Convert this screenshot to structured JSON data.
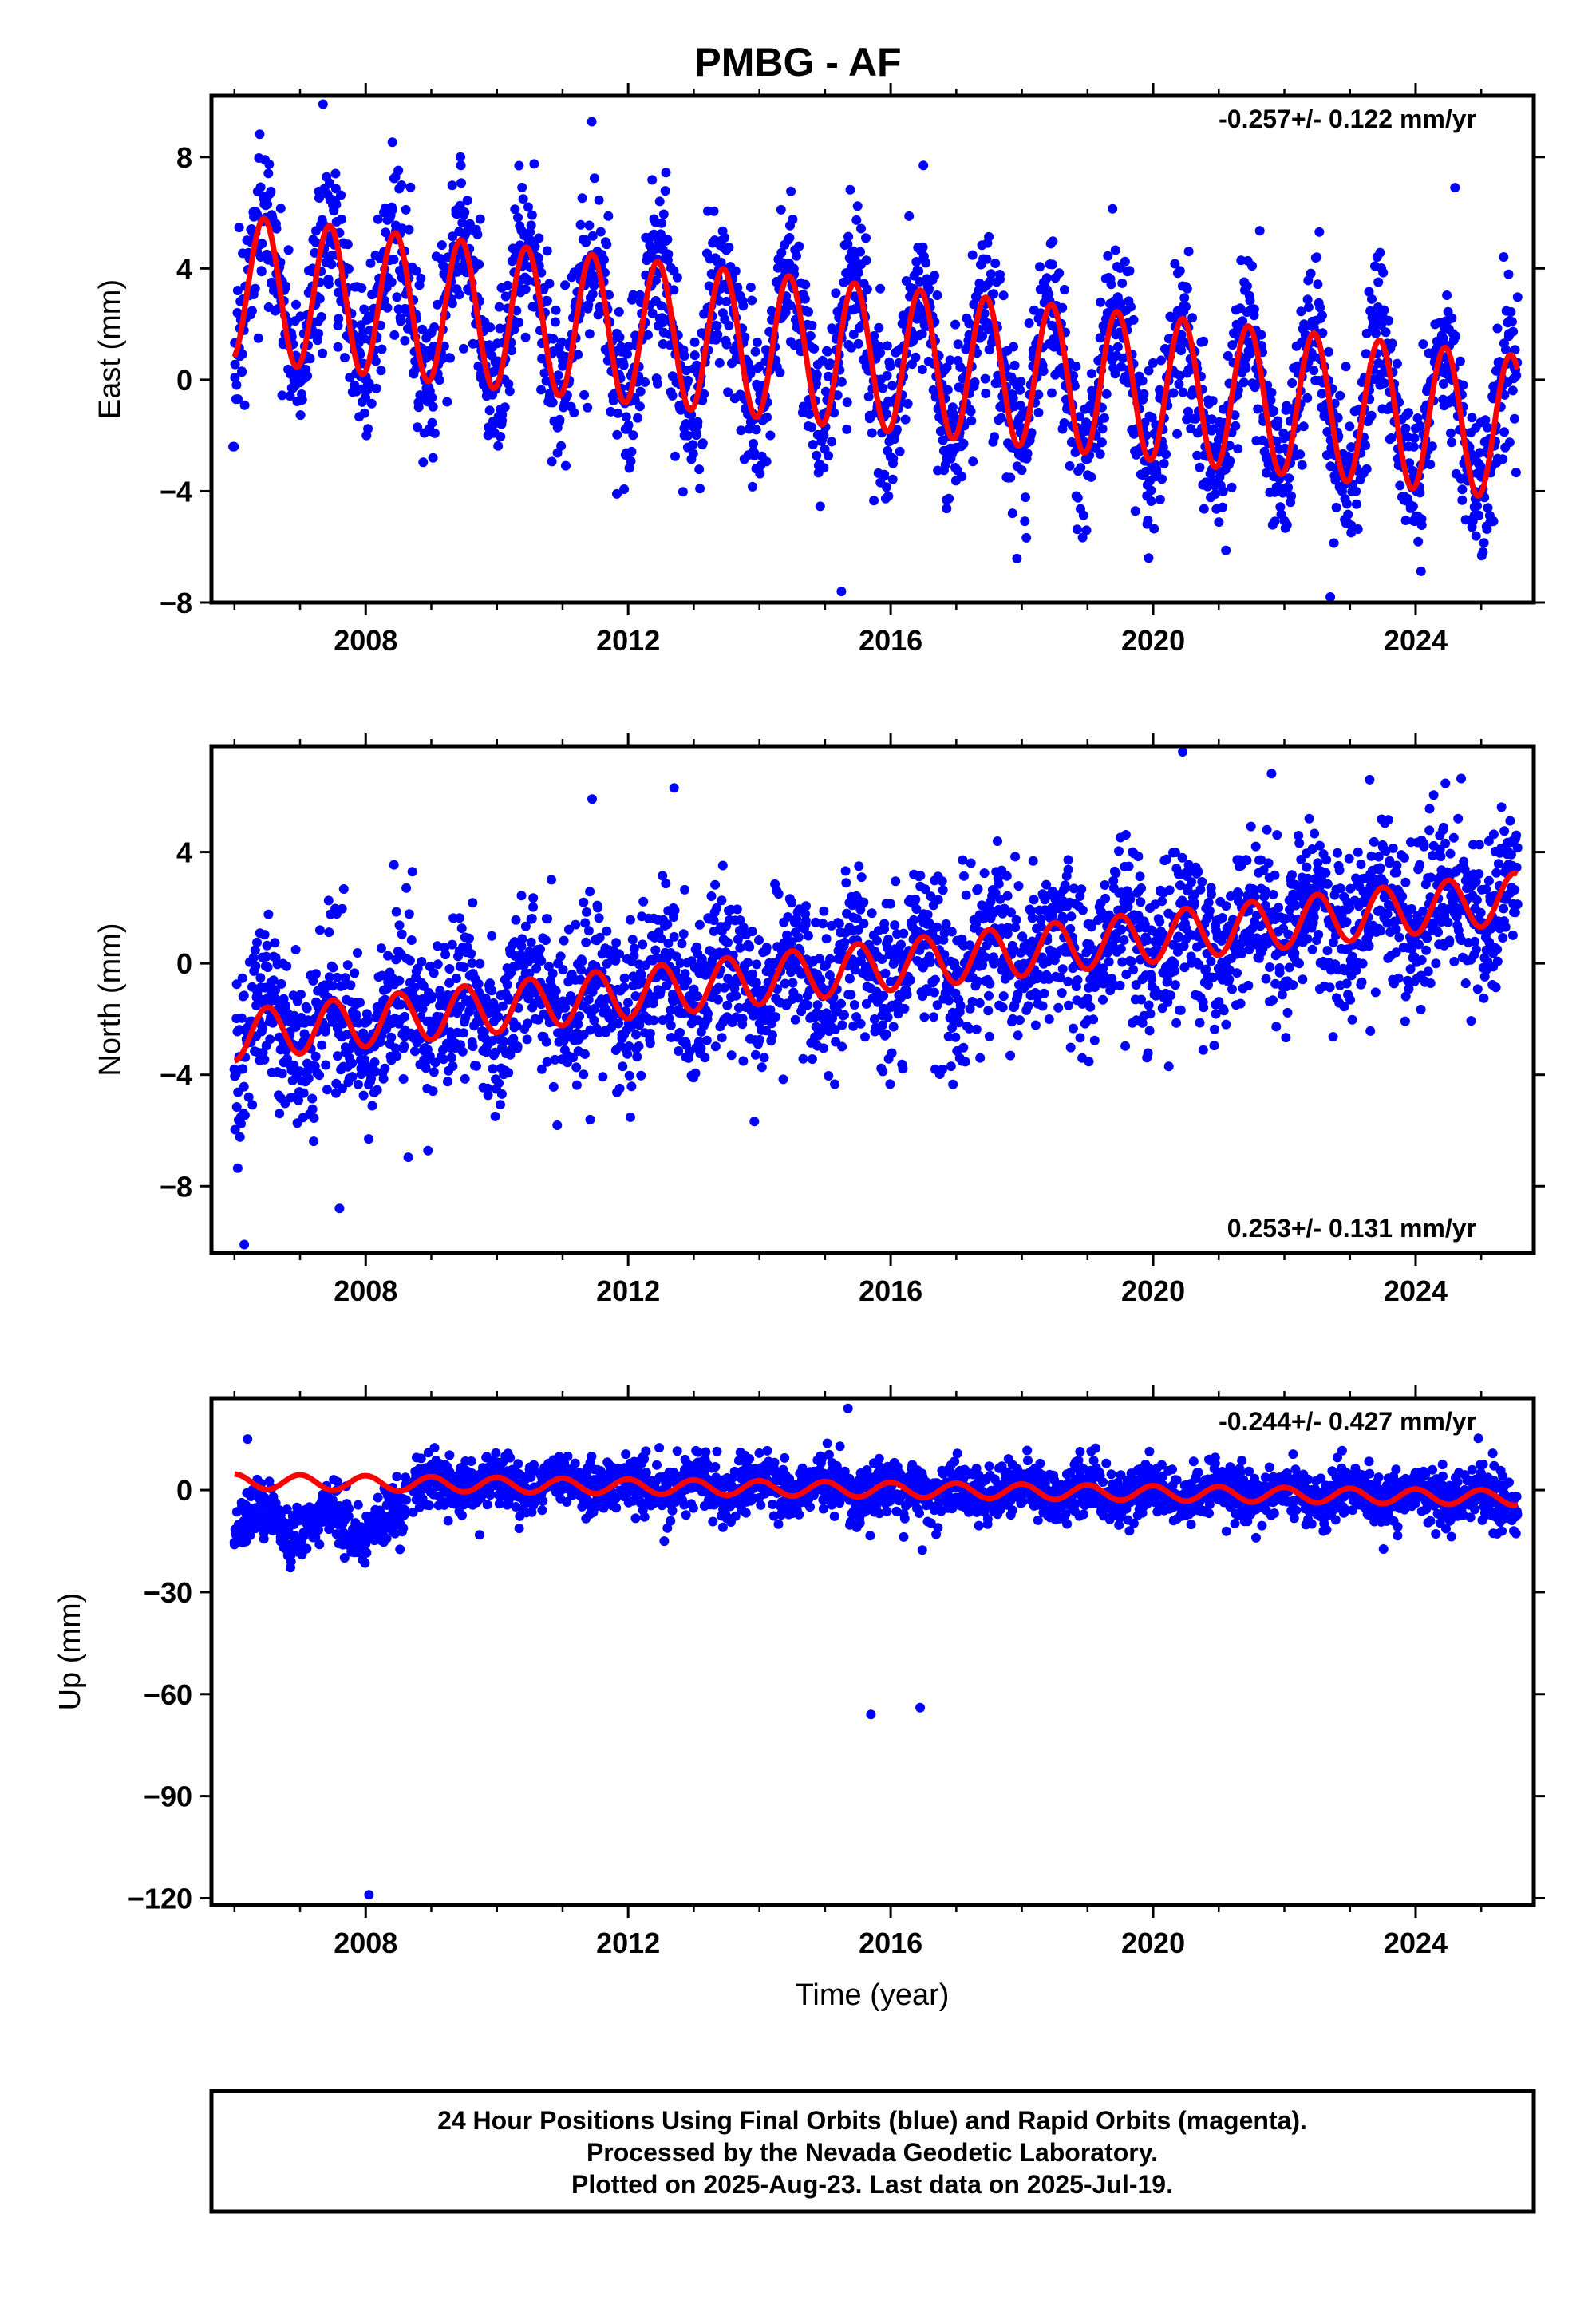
{
  "title": "PMBG - AF",
  "xlabel": "Time (year)",
  "x_ticks": [
    "2008",
    "2012",
    "2016",
    "2020",
    "2024"
  ],
  "footer": {
    "line1": "24 Hour Positions Using Final Orbits (blue) and Rapid Orbits (magenta).",
    "line2": "Processed by the Nevada Geodetic Laboratory.",
    "line3": "Plotted on 2025-Aug-23. Last data on 2025-Jul-19."
  },
  "colors": {
    "points": "#0000ff",
    "fit": "#ff0000",
    "axes": "#000000"
  },
  "chart_data": [
    {
      "type": "scatter",
      "name": "east",
      "ylabel": "East (mm)",
      "rate_label": "-0.257+/- 0.122 mm/yr",
      "rate_position": "top-right",
      "xlim": [
        2005.65,
        2025.8
      ],
      "ylim": [
        -8,
        10.2
      ],
      "y_ticks": [
        8,
        4,
        0,
        -4,
        -8
      ],
      "y_tick_labels": [
        "8",
        "4",
        "0",
        "−4",
        "−8"
      ],
      "x_range_data": [
        2006.0,
        2025.55
      ],
      "rate_mm_yr": -0.257,
      "offset_mm": 2.5,
      "annual_amplitude_mm": 2.5,
      "annual_peak_year_fraction": 0.45,
      "noise_sd_mm": 1.5,
      "outliers": [
        [
          2005.98,
          -2.4
        ],
        [
          2007.35,
          9.9
        ],
        [
          2015.25,
          -7.6
        ],
        [
          2022.7,
          -7.8
        ],
        [
          2024.6,
          6.9
        ],
        [
          2016.5,
          7.7
        ]
      ],
      "fit": {
        "rate": -0.257,
        "offset": 3.3,
        "amplitude": 2.6,
        "peak": 0.45
      }
    },
    {
      "type": "scatter",
      "name": "north",
      "ylabel": "North (mm)",
      "rate_label": "0.253+/- 0.131 mm/yr",
      "rate_position": "bottom-right",
      "xlim": [
        2005.65,
        2025.8
      ],
      "ylim": [
        -10.4,
        7.8
      ],
      "y_ticks": [
        4,
        0,
        -4,
        -8
      ],
      "y_tick_labels": [
        "4",
        "0",
        "−4",
        "−8"
      ],
      "x_range_data": [
        2006.0,
        2025.55
      ],
      "rate_mm_yr": 0.253,
      "offset_mm": -2.6,
      "annual_amplitude_mm": 0.9,
      "annual_peak_year_fraction": 0.5,
      "noise_sd_mm": 1.5,
      "outliers": [
        [
          2006.15,
          -10.1
        ],
        [
          2020.45,
          7.6
        ],
        [
          2012.7,
          6.3
        ],
        [
          2011.45,
          5.9
        ],
        [
          2023.3,
          6.6
        ],
        [
          2007.6,
          -8.8
        ]
      ],
      "fit": {
        "rate": 0.253,
        "offset": -2.6,
        "amplitude": 0.9,
        "peak": 0.5
      }
    },
    {
      "type": "scatter",
      "name": "up",
      "ylabel": "Up (mm)",
      "rate_label": "-0.244+/- 0.427 mm/yr",
      "rate_position": "top-right",
      "xlim": [
        2005.65,
        2025.8
      ],
      "ylim": [
        -122,
        27
      ],
      "y_ticks": [
        0,
        -30,
        -60,
        -90,
        -120
      ],
      "y_tick_labels": [
        "0",
        "−30",
        "−60",
        "−90",
        "−120"
      ],
      "x_range_data": [
        2006.0,
        2025.55
      ],
      "rate_mm_yr": -0.244,
      "offset_mm": 2.0,
      "annual_amplitude_mm": 2.5,
      "annual_peak_year_fraction": 0.0,
      "noise_sd_mm": 4.0,
      "early_offset_mm": -12,
      "early_offset_until": 2008.6,
      "outliers": [
        [
          2008.05,
          -119
        ],
        [
          2015.7,
          -66
        ],
        [
          2016.45,
          -64
        ],
        [
          2015.35,
          24
        ],
        [
          2006.2,
          15
        ]
      ],
      "fit": {
        "rate": -0.244,
        "offset": 2.5,
        "amplitude": 2.2,
        "peak": 0.0
      }
    }
  ]
}
